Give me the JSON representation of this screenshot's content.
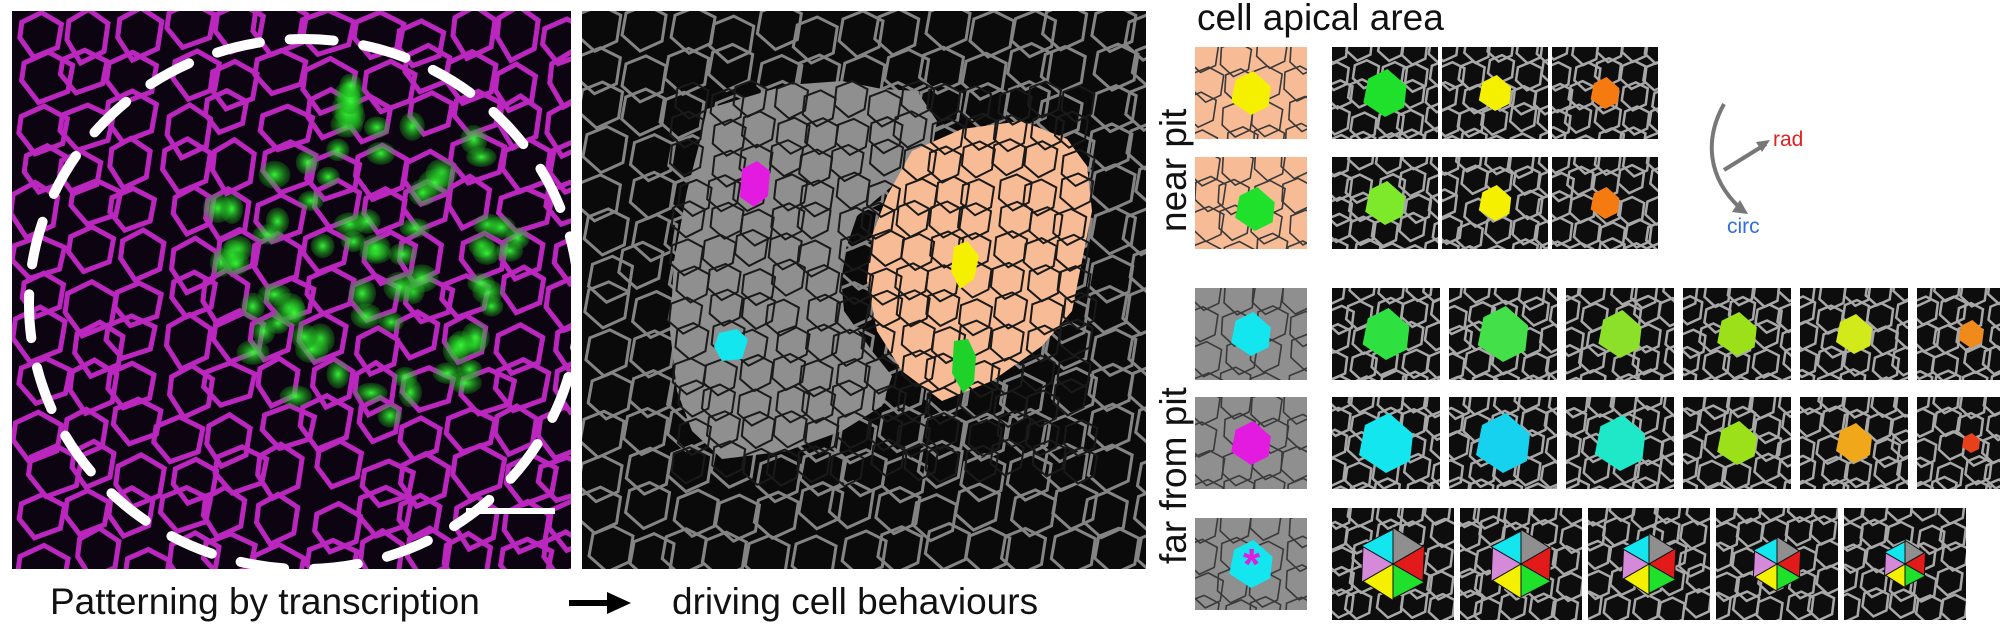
{
  "captions": {
    "left": "Patterning by transcription",
    "right": "driving cell behaviours"
  },
  "right_panel": {
    "title": "cell apical area",
    "row_labels": {
      "near": "near pit",
      "far": "far from pit"
    },
    "axis": {
      "rad": "rad",
      "circ": "circ"
    },
    "star_mark": "*"
  },
  "colors": {
    "magenta": "#e23ce0",
    "green": "#1fe02a",
    "salmon": "#f7bb96",
    "gray": "#8f8f8f",
    "yellow": "#f4f000",
    "cyan": "#14e6f0",
    "orange": "#f57a10",
    "rad_red": "#e32020",
    "circ_blue": "#2f6fe0"
  }
}
